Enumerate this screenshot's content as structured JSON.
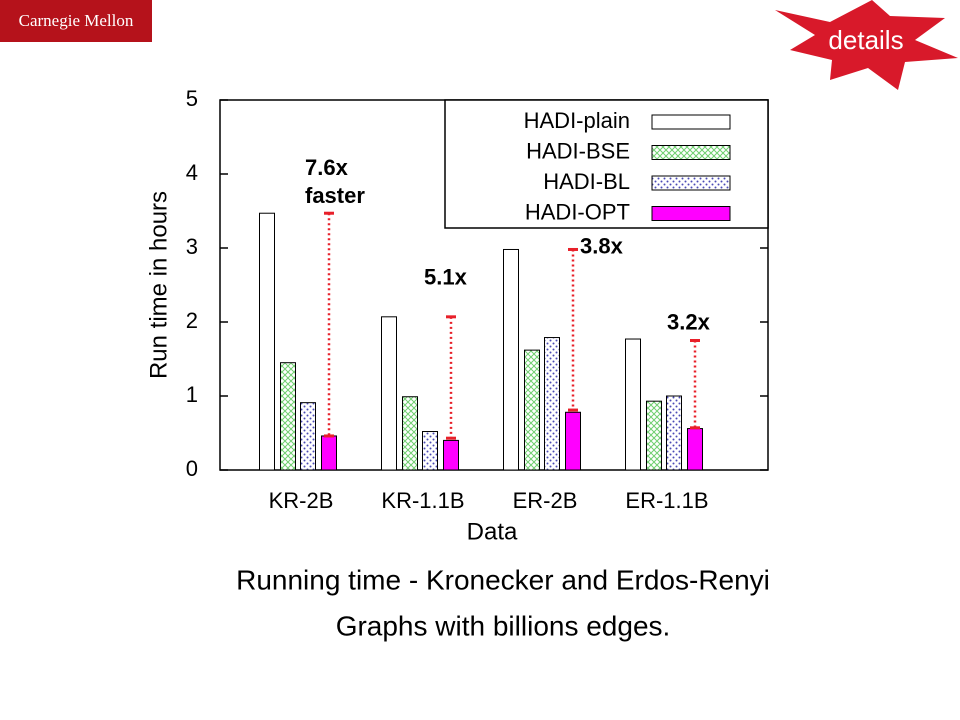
{
  "header": {
    "logo": "Carnegie Mellon",
    "button": "details"
  },
  "chart_data": {
    "type": "bar",
    "y_label": "Run time in hours",
    "x_label": "Data",
    "categories": [
      "KR-2B",
      "KR-1.1B",
      "ER-2B",
      "ER-1.1B"
    ],
    "series": [
      {
        "name": "HADI-plain",
        "color": "#000000",
        "pattern": "empty",
        "values": [
          3.47,
          2.07,
          2.98,
          1.77
        ]
      },
      {
        "name": "HADI-BSE",
        "color": "#6fcf6f",
        "pattern": "crosshatch",
        "values": [
          1.45,
          0.99,
          1.62,
          0.93
        ]
      },
      {
        "name": "HADI-BL",
        "color": "#4a4ab5",
        "pattern": "dots",
        "values": [
          0.91,
          0.52,
          1.79,
          1.0
        ]
      },
      {
        "name": "HADI-OPT",
        "color": "#ff00ff",
        "pattern": "solid",
        "values": [
          0.46,
          0.4,
          0.78,
          0.56
        ]
      }
    ],
    "annotations": [
      {
        "label": [
          "7.6x",
          "faster"
        ],
        "from": 3.47,
        "to": 0.46
      },
      {
        "label": [
          "5.1x"
        ],
        "from": 2.07,
        "to": 0.43
      },
      {
        "label": [
          "3.8x"
        ],
        "from": 2.98,
        "to": 0.81
      },
      {
        "label": [
          "3.2x"
        ],
        "from": 1.75,
        "to": 0.57
      }
    ],
    "annotation_color": "#e8202a",
    "ylim": [
      0,
      5
    ],
    "yticks": [
      0,
      1,
      2,
      3,
      4,
      5
    ],
    "legend": "upper right"
  },
  "caption": [
    "Running time -  Kronecker and Erdos-Renyi",
    "Graphs with billions edges."
  ]
}
